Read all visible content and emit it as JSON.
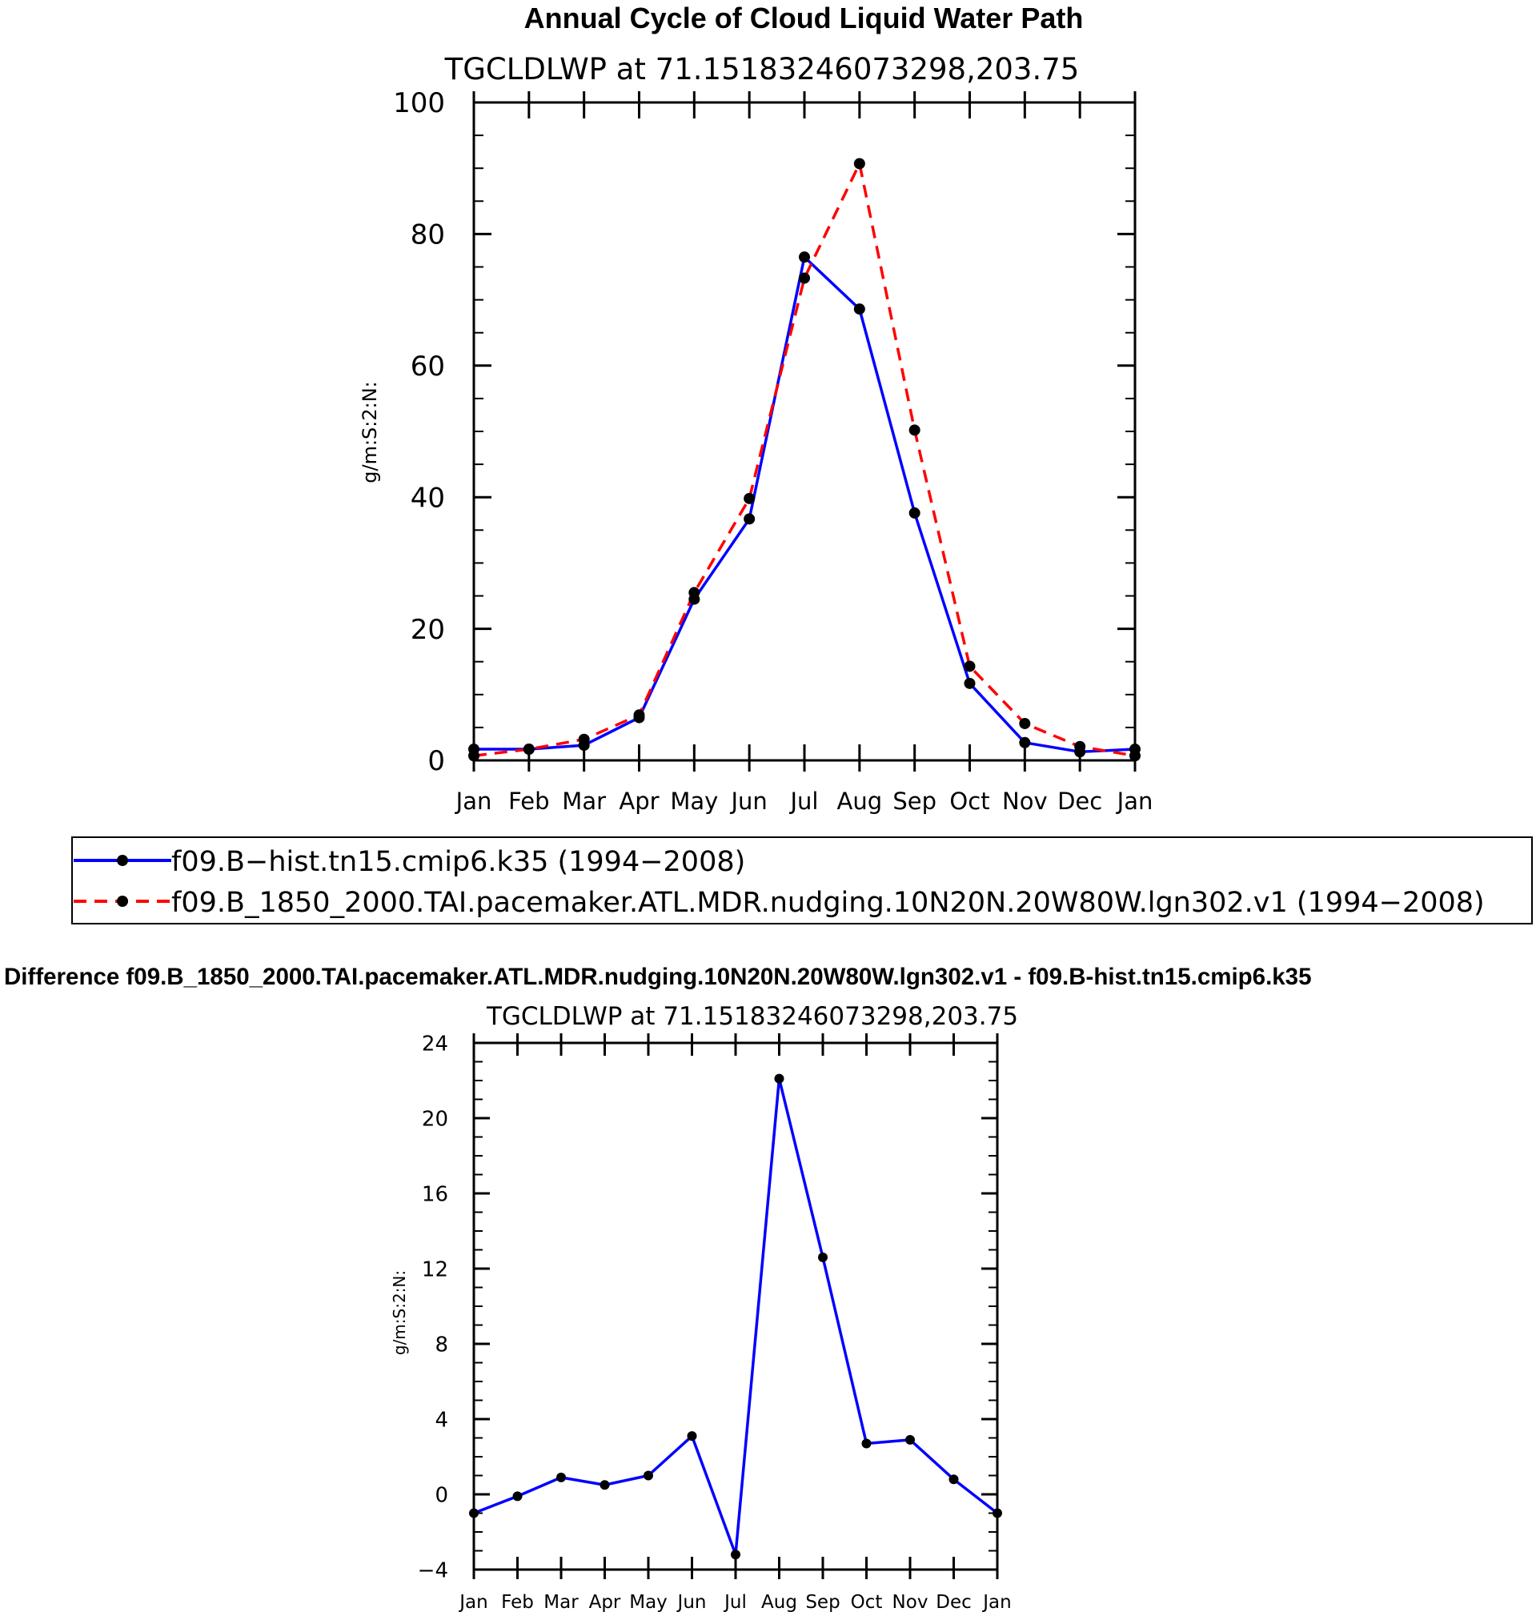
{
  "chart_data": [
    {
      "type": "line",
      "title": "Annual Cycle of Cloud Liquid Water Path",
      "subtitle": "TGCLDLWP  at  71.15183246073298,203.75",
      "ylabel": "g/m:S:2:N:",
      "xlabel": "",
      "categories": [
        "Jan",
        "Feb",
        "Mar",
        "Apr",
        "May",
        "Jun",
        "Jul",
        "Aug",
        "Sep",
        "Oct",
        "Nov",
        "Dec",
        "Jan"
      ],
      "ylim": [
        0,
        100
      ],
      "yticks": [
        0,
        20,
        40,
        60,
        80,
        100
      ],
      "yminor_step": 5,
      "grid": false,
      "series": [
        {
          "name": "f09.B−hist.tn15.cmip6.k35 (1994−2008)",
          "color": "#0000ff",
          "dash": "solid",
          "values": [
            1.7,
            1.7,
            2.3,
            6.5,
            24.5,
            36.7,
            76.5,
            68.6,
            37.6,
            11.7,
            2.7,
            1.3,
            1.7
          ]
        },
        {
          "name": "f09.B_1850_2000.TAI.pacemaker.ATL.MDR.nudging.10N20N.20W80W.lgn302.v1 (1994−2008)",
          "color": "#ff0000",
          "dash": "dashed",
          "values": [
            0.7,
            1.7,
            3.2,
            6.9,
            25.5,
            39.8,
            73.3,
            90.7,
            50.2,
            14.3,
            5.6,
            2.1,
            0.7
          ]
        }
      ]
    },
    {
      "type": "line",
      "title": "Difference f09.B_1850_2000.TAI.pacemaker.ATL.MDR.nudging.10N20N.20W80W.lgn302.v1 - f09.B-hist.tn15.cmip6.k35",
      "subtitle": "TGCLDLWP  at  71.15183246073298,203.75",
      "ylabel": "g/m:S:2:N:",
      "xlabel": "",
      "categories": [
        "Jan",
        "Feb",
        "Mar",
        "Apr",
        "May",
        "Jun",
        "Jul",
        "Aug",
        "Sep",
        "Oct",
        "Nov",
        "Dec",
        "Jan"
      ],
      "ylim": [
        -4,
        24
      ],
      "yticks": [
        -4,
        0,
        4,
        8,
        12,
        16,
        20,
        24
      ],
      "yminor_step": 1,
      "grid": false,
      "series": [
        {
          "name": "Difference",
          "color": "#0000ff",
          "dash": "solid",
          "values": [
            -1.0,
            -0.1,
            0.9,
            0.5,
            1.0,
            3.1,
            -3.2,
            22.1,
            12.6,
            2.7,
            2.9,
            0.8,
            -1.0
          ]
        }
      ]
    }
  ]
}
